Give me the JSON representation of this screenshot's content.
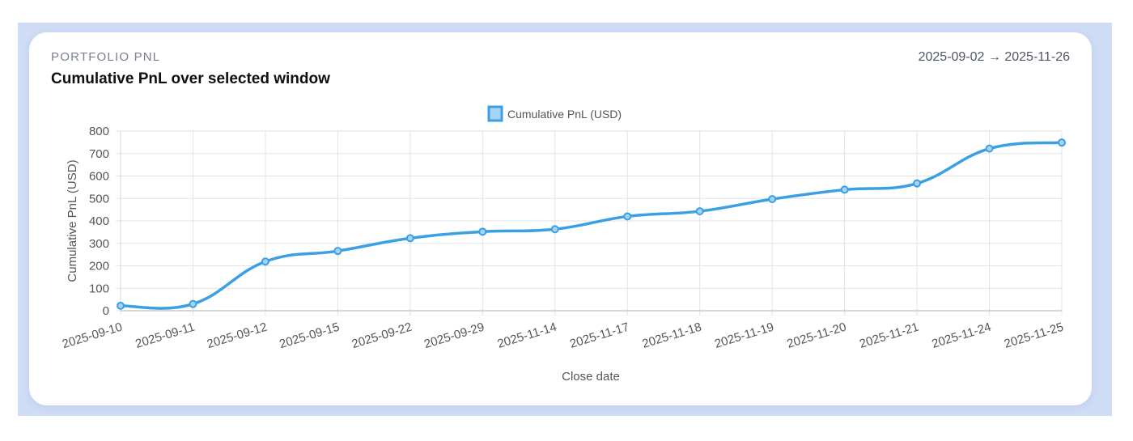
{
  "card": {
    "eyebrow": "PORTFOLIO PNL",
    "title": "Cumulative PnL over selected window",
    "date_range": "2025-09-02 → 2025-11-26"
  },
  "colors": {
    "line": "#3aa0e3",
    "legend_fill": "#a9d3f3",
    "grid": "#e3e3e3",
    "text": "#555555"
  },
  "chart_data": {
    "type": "line",
    "title": "",
    "xlabel": "Close date",
    "ylabel": "Cumulative PnL (USD)",
    "ylim": [
      0,
      800
    ],
    "yticks": [
      0,
      100,
      200,
      300,
      400,
      500,
      600,
      700,
      800
    ],
    "grid": true,
    "legend_position": "top-center",
    "categories": [
      "2025-09-10",
      "2025-09-11",
      "2025-09-12",
      "2025-09-15",
      "2025-09-22",
      "2025-09-29",
      "2025-11-14",
      "2025-11-17",
      "2025-11-18",
      "2025-11-19",
      "2025-11-20",
      "2025-11-21",
      "2025-11-24",
      "2025-11-25"
    ],
    "series": [
      {
        "name": "Cumulative PnL (USD)",
        "values": [
          22,
          30,
          219,
          266,
          323,
          352,
          363,
          420,
          443,
          497,
          539,
          567,
          722,
          749
        ]
      }
    ]
  }
}
